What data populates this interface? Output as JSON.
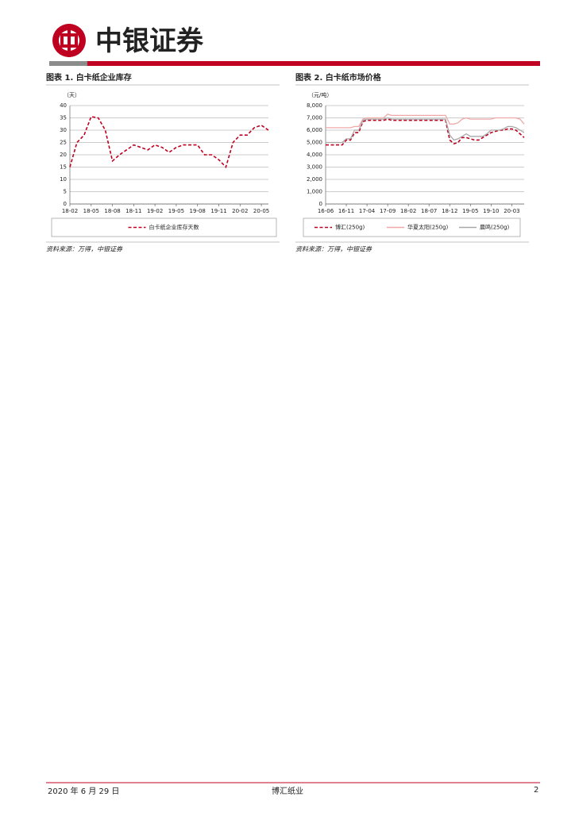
{
  "header": {
    "brand": "中银证券"
  },
  "chart_data": [
    {
      "type": "line",
      "title": "图表 1. 白卡纸企业库存",
      "y_label": "（天）",
      "categories": [
        "18-02",
        null,
        null,
        "18-05",
        null,
        null,
        "18-08",
        null,
        null,
        "18-11",
        null,
        null,
        "19-02",
        null,
        null,
        "19-05",
        null,
        null,
        "19-08",
        null,
        null,
        "19-11",
        null,
        null,
        "20-02",
        null,
        null,
        "20-05",
        null
      ],
      "series": [
        {
          "name": "白卡纸企业库存天数",
          "color": "#c00020",
          "style": "dashed",
          "values": [
            15,
            25,
            28,
            35.5,
            35,
            30,
            17.5,
            20,
            22,
            24,
            23,
            22,
            24,
            23,
            21,
            23,
            24,
            24,
            24,
            20,
            20,
            18,
            15,
            25,
            28,
            28,
            31,
            32,
            30
          ]
        }
      ],
      "ylim": [
        0,
        40
      ],
      "yticks": [
        0,
        5,
        10,
        15,
        20,
        25,
        30,
        35,
        40
      ],
      "grid": true,
      "legend": "bottom"
    },
    {
      "type": "line",
      "title": "图表 2. 白卡纸市场价格",
      "y_label": "（元/吨）",
      "categories": [
        "16-06",
        null,
        null,
        null,
        null,
        "16-11",
        null,
        null,
        null,
        null,
        "17-04",
        null,
        null,
        null,
        null,
        "17-09",
        null,
        null,
        null,
        null,
        "18-02",
        null,
        null,
        null,
        null,
        "18-07",
        null,
        null,
        null,
        null,
        "18-12",
        null,
        null,
        null,
        null,
        "19-05",
        null,
        null,
        null,
        null,
        "19-10",
        null,
        null,
        null,
        null,
        "20-03",
        null,
        null,
        null
      ],
      "series": [
        {
          "name": "博汇(250g)",
          "color": "#c00020",
          "style": "dashed",
          "values": [
            4800,
            4800,
            4800,
            4800,
            4800,
            5200,
            5200,
            5800,
            5800,
            6700,
            6800,
            6800,
            6800,
            6800,
            6800,
            6900,
            6800,
            6800,
            6800,
            6800,
            6800,
            6800,
            6800,
            6800,
            6800,
            6800,
            6800,
            6800,
            6800,
            6800,
            5200,
            4900,
            5000,
            5400,
            5400,
            5300,
            5200,
            5200,
            5400,
            5600,
            5800,
            5900,
            6000,
            6000,
            6100,
            6100,
            6000,
            5700,
            5400
          ]
        },
        {
          "name": "华夏太阳(250g)",
          "color": "#f0a8a8",
          "style": "solid",
          "values": [
            6200,
            6200,
            6200,
            6200,
            6200,
            6200,
            6200,
            6300,
            6300,
            6900,
            7000,
            7000,
            7000,
            7000,
            7000,
            7300,
            7200,
            7200,
            7200,
            7200,
            7200,
            7200,
            7200,
            7200,
            7200,
            7200,
            7200,
            7200,
            7200,
            7200,
            6500,
            6500,
            6600,
            6900,
            7000,
            6900,
            6900,
            6900,
            6900,
            6900,
            6900,
            7000,
            7000,
            7000,
            7000,
            7000,
            7000,
            6900,
            6500
          ]
        },
        {
          "name": "晨鸣(250g)",
          "color": "#a8a8a8",
          "style": "solid",
          "values": [
            5000,
            5000,
            5000,
            5000,
            5000,
            5300,
            5300,
            6000,
            6000,
            6800,
            6900,
            6900,
            6900,
            6900,
            6900,
            7000,
            6900,
            6900,
            6900,
            6900,
            6900,
            6900,
            6900,
            6900,
            6900,
            6900,
            6900,
            6900,
            6900,
            6900,
            5600,
            5200,
            5300,
            5500,
            5700,
            5500,
            5500,
            5500,
            5500,
            5700,
            6000,
            6000,
            6000,
            6100,
            6300,
            6300,
            6200,
            6000,
            5800
          ]
        }
      ],
      "ylim": [
        0,
        8000
      ],
      "yticks": [
        0,
        {
          "value": 1000,
          "label": "1,000"
        },
        {
          "value": 2000,
          "label": "2,000"
        },
        {
          "value": 3000,
          "label": "3,000"
        },
        {
          "value": 4000,
          "label": "4,000"
        },
        {
          "value": 5000,
          "label": "5,000"
        },
        {
          "value": 6000,
          "label": "6,000"
        },
        {
          "value": 7000,
          "label": "7,000"
        },
        {
          "value": 8000,
          "label": "8,000"
        }
      ],
      "grid": true,
      "legend": "bottom"
    }
  ],
  "sources": [
    "资料来源：万得，中银证券",
    "资料来源：万得，中银证券"
  ],
  "footer": {
    "date": "2020 年 6 月 29 日",
    "company": "博汇纸业",
    "page": "2"
  }
}
